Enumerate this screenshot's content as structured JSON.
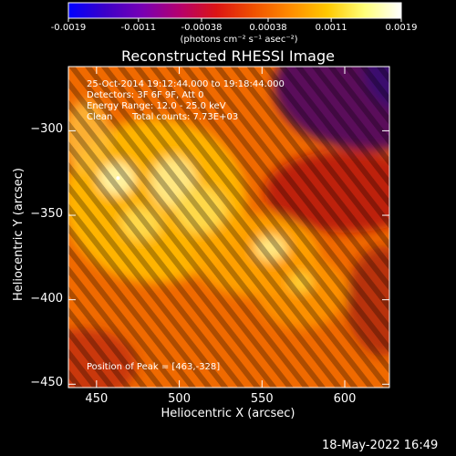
{
  "colorbar": {
    "ticks": [
      "-0.0019",
      "-0.0011",
      "-0.00038",
      "0.00038",
      "0.0011",
      "0.0019"
    ],
    "tick_values": [
      -0.0019,
      -0.0011,
      -0.00038,
      0.00038,
      0.0011,
      0.0019
    ],
    "range": [
      -0.0019,
      0.0019
    ],
    "unit_label": "(photons cm⁻² s⁻¹ asec⁻²)",
    "colormap": [
      "#0000ff",
      "#3c00c8",
      "#7800b4",
      "#b4006e",
      "#dc1414",
      "#f05000",
      "#ff8c00",
      "#ffc800",
      "#ffff78",
      "#ffffff"
    ]
  },
  "chart_data": {
    "type": "heatmap",
    "title": "Reconstructed RHESSI Image",
    "xlabel": "Heliocentric X (arcsec)",
    "ylabel": "Heliocentric Y (arcsec)",
    "xlim": [
      433,
      627
    ],
    "ylim": [
      -452,
      -262
    ],
    "xticks": [
      450,
      500,
      550,
      600
    ],
    "yticks": [
      -300,
      -350,
      -400,
      -450
    ],
    "peak_position": [
      463,
      -328
    ],
    "annotations": {
      "time_range": "25-Oct-2014 19:12:44.000 to 19:18:44.000",
      "detectors": "Detectors: 3F 6F 9F, Att 0",
      "energy": "Energy Range: 12.0 - 25.0 keV",
      "clean": "Clean",
      "total_counts": "Total counts: 7.73E+03",
      "peak": "Position of Peak = [463,-328]"
    }
  },
  "footer": {
    "date": "18-May-2022 16:49"
  }
}
